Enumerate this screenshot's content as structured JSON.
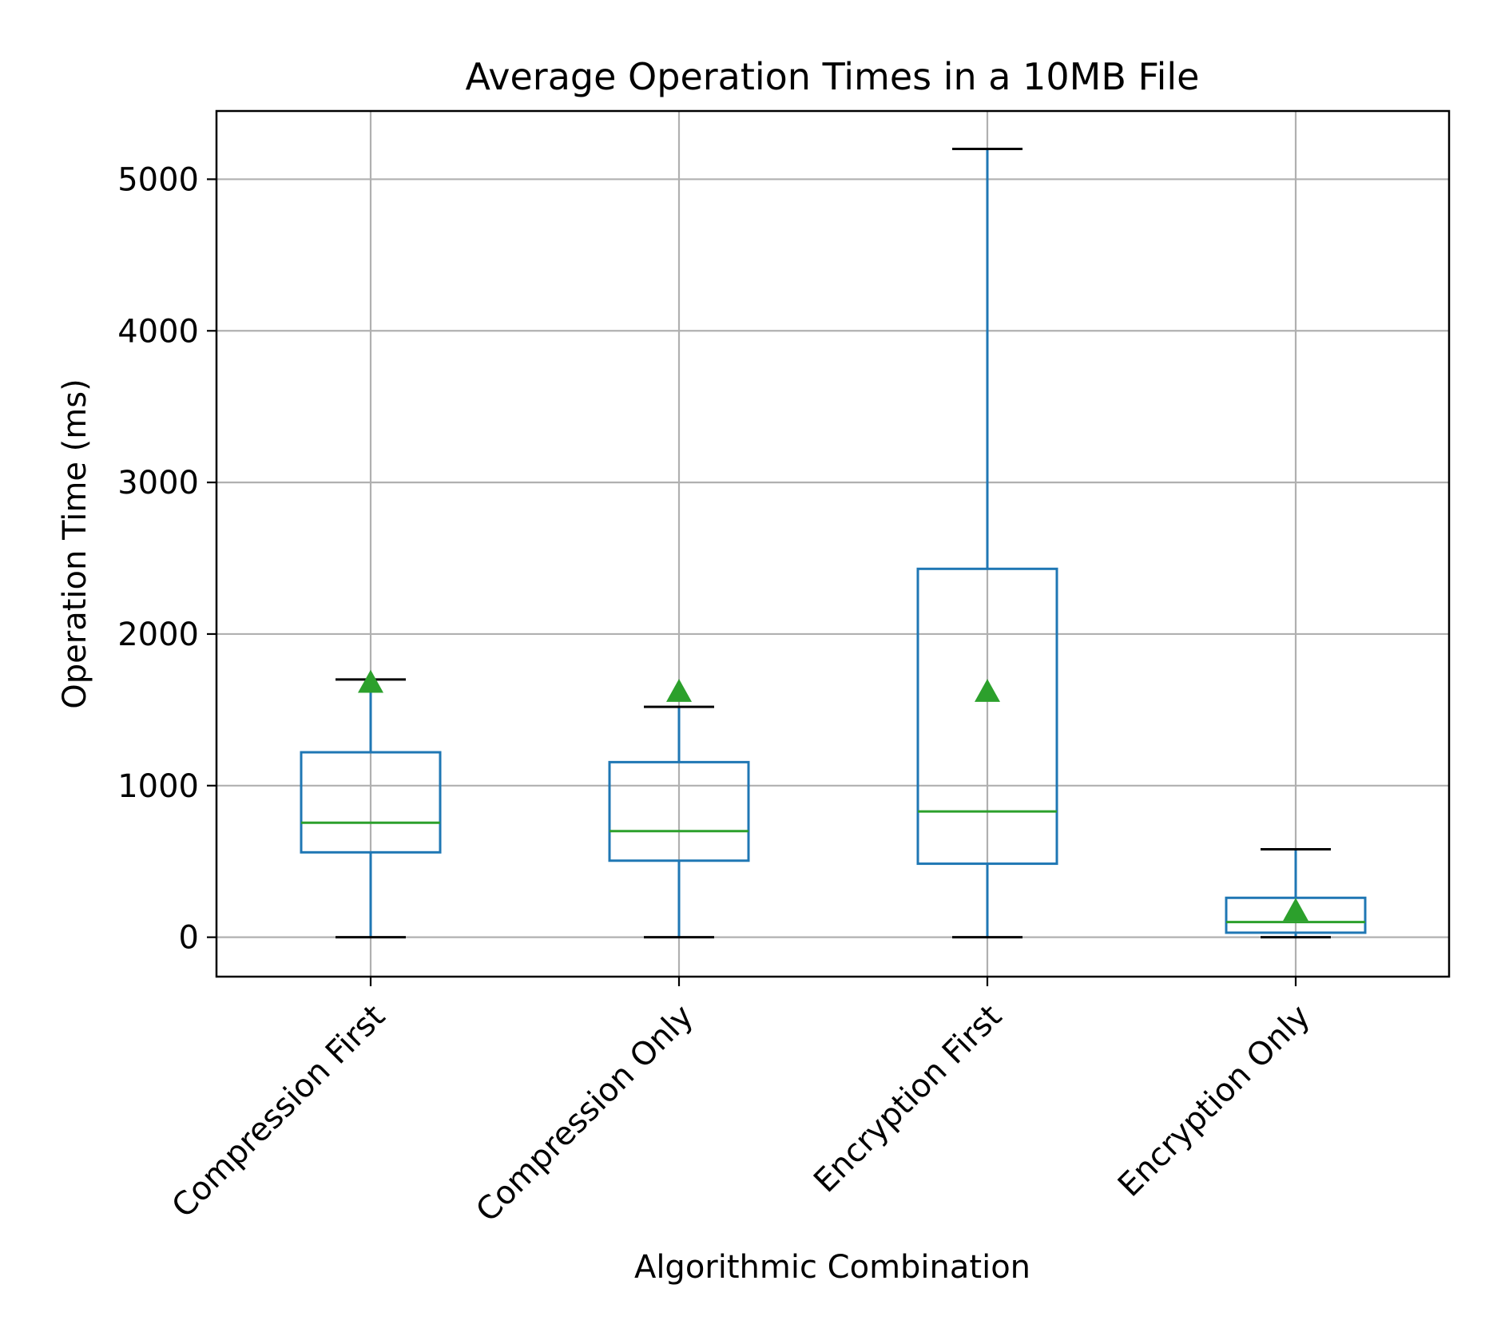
{
  "chart_data": {
    "type": "box",
    "title": "Average Operation Times in a 10MB File",
    "xlabel": "Algorithmic Combination",
    "ylabel": "Operation Time (ms)",
    "ylim": [
      -260,
      5450
    ],
    "yticks": [
      0,
      1000,
      2000,
      3000,
      4000,
      5000
    ],
    "grid": true,
    "categories": [
      "Compression First",
      "Compression Only",
      "Encryption First",
      "Encryption Only"
    ],
    "boxes": [
      {
        "category": "Compression First",
        "whisker_low": 0,
        "q1": 560,
        "median": 755,
        "q3": 1220,
        "whisker_high": 1700,
        "mean": 1680
      },
      {
        "category": "Compression Only",
        "whisker_low": 0,
        "q1": 505,
        "median": 700,
        "q3": 1155,
        "whisker_high": 1520,
        "mean": 1620
      },
      {
        "category": "Encryption First",
        "whisker_low": 0,
        "q1": 485,
        "median": 830,
        "q3": 2430,
        "whisker_high": 5200,
        "mean": 1620
      },
      {
        "category": "Encryption Only",
        "whisker_low": 0,
        "q1": 30,
        "median": 100,
        "q3": 260,
        "whisker_high": 580,
        "mean": 175
      }
    ],
    "colors": {
      "box": "#1f77b4",
      "median": "#2ca02c",
      "mean_marker": "#2ca02c",
      "whisker_cap": "#000000",
      "grid": "#b0b0b0"
    }
  }
}
